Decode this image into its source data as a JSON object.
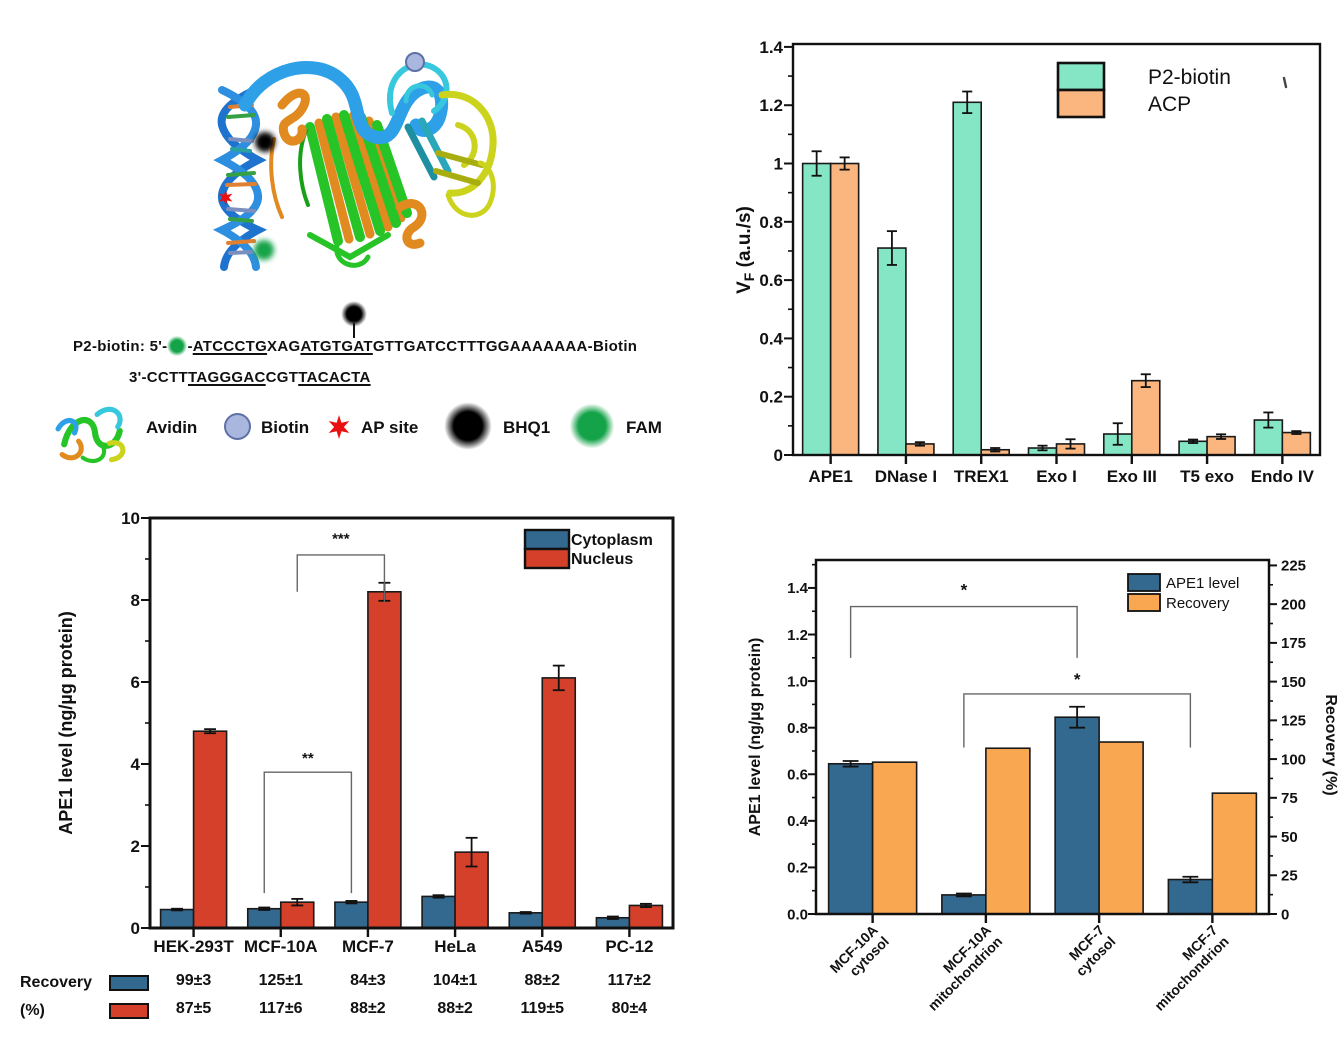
{
  "panel_a": {
    "sequence": {
      "line1_prefix": "P2-biotin: 5'-",
      "line1_dash": "-",
      "line1_seg_u1": "ATCCCTG",
      "line1_mid": "XAG",
      "line1_seg_u2": "ATGTGAT",
      "line1_tail": "GTTGATCCTTTGGAAAAAAA-Biotin",
      "line2_prefix": "3'-CCTT",
      "line2_seg_u1": "TAGGGAC",
      "line2_mid": "CGT",
      "line2_seg_u2": "TACACTA"
    },
    "legend": {
      "avidin": "Avidin",
      "biotin": "Biotin",
      "ap_site": "AP site",
      "bhq1": "BHQ1",
      "fam": "FAM"
    },
    "colors": {
      "fam": "#15a349",
      "bhq1": "#000000",
      "biotin": "#a9b6dd",
      "ap_site": "#e81010"
    }
  },
  "chart_data": [
    {
      "id": "chart-enzymes",
      "type": "bar",
      "title": "",
      "ylabel_parts": [
        [
          "V",
          false
        ],
        [
          "F",
          true
        ],
        [
          " (a.u./s)",
          false
        ]
      ],
      "categories": [
        "APE1",
        "DNase I",
        "TREX1",
        "Exo I",
        "Exo III",
        "T5 exo",
        "Endo IV"
      ],
      "series": [
        {
          "name": "P2-biotin",
          "color": "#85e6c5",
          "values": [
            1.0,
            0.71,
            1.21,
            0.024,
            0.072,
            0.047,
            0.12
          ],
          "errors": [
            0.042,
            0.058,
            0.037,
            0.008,
            0.037,
            0.006,
            0.026
          ]
        },
        {
          "name": "ACP",
          "color": "#fbb57e",
          "values": [
            1.0,
            0.038,
            0.018,
            0.038,
            0.255,
            0.063,
            0.077
          ],
          "errors": [
            0.021,
            0.006,
            0.006,
            0.016,
            0.022,
            0.008,
            0.005
          ]
        }
      ],
      "ylim": [
        0,
        1.41
      ],
      "yticks": [
        0,
        0.2,
        0.4,
        0.6,
        0.8,
        1.0,
        1.2,
        1.4
      ],
      "ytick_labels": [
        "0",
        "0.2",
        "0.4",
        "0.6",
        "0.8",
        "1",
        "1.2",
        "1.4"
      ],
      "minor_step": 0.1,
      "grid": false,
      "legend_position": "top-right-inside"
    },
    {
      "id": "chart-cells",
      "type": "bar",
      "title": "",
      "ylabel_parts": [
        [
          "APE1 level (ng/µg protein)",
          false
        ]
      ],
      "categories": [
        "HEK-293T",
        "MCF-10A",
        "MCF-7",
        "HeLa",
        "A549",
        "PC-12"
      ],
      "series": [
        {
          "name": "Cytoplasm",
          "color": "#33688f",
          "values": [
            0.45,
            0.47,
            0.63,
            0.77,
            0.37,
            0.25
          ],
          "errors": [
            0.02,
            0.03,
            0.03,
            0.03,
            0.02,
            0.03
          ]
        },
        {
          "name": "Nucleus",
          "color": "#d4402a",
          "values": [
            4.8,
            0.63,
            8.2,
            1.85,
            6.1,
            0.55
          ],
          "errors": [
            0.05,
            0.08,
            0.22,
            0.35,
            0.3,
            0.04
          ]
        }
      ],
      "ylim": [
        0,
        10
      ],
      "yticks": [
        0,
        2,
        4,
        6,
        8,
        10
      ],
      "ytick_labels": [
        "0",
        "2",
        "4",
        "6",
        "8",
        "10"
      ],
      "minor_step": 1,
      "grid": false,
      "legend_position": "top-right-inside",
      "brackets": [
        {
          "from": [
            1,
            0
          ],
          "to": [
            2,
            0
          ],
          "y": 3.8,
          "drop_left": 2.95,
          "drop_right": 2.95,
          "label": "**",
          "label_y": 4.15
        },
        {
          "from": [
            1,
            1
          ],
          "to": [
            2,
            1
          ],
          "y": 9.1,
          "drop_left": 0.9,
          "drop_right": 1.15,
          "label": "***",
          "label_y": 9.5
        }
      ]
    },
    {
      "id": "chart-organelle",
      "type": "bar",
      "title": "",
      "ylabel_parts": [
        [
          "APE1 level (ng/µg protein)",
          false
        ]
      ],
      "categories": [
        [
          "MCF-10A",
          "cytosol"
        ],
        [
          "MCF-10A",
          "mitochondrion"
        ],
        [
          "MCF-7",
          "cytosol"
        ],
        [
          "MCF-7",
          "mitochondrion"
        ]
      ],
      "series": [
        {
          "name": "APE1 level",
          "color": "#33688f",
          "axis": "left",
          "values": [
            0.645,
            0.082,
            0.845,
            0.148
          ],
          "errors": [
            0.012,
            0.006,
            0.045,
            0.012
          ]
        },
        {
          "name": "Recovery",
          "color": "#f9a851",
          "axis": "right",
          "values": [
            98,
            107,
            111,
            78
          ],
          "errors": null
        }
      ],
      "ylim": [
        0,
        1.52
      ],
      "yticks": [
        0,
        0.2,
        0.4,
        0.6,
        0.8,
        1.0,
        1.2,
        1.4
      ],
      "ytick_labels": [
        "0.0",
        "0.2",
        "0.4",
        "0.6",
        "0.8",
        "1.0",
        "1.2",
        "1.4"
      ],
      "minor_step": 0.1,
      "right_axis": {
        "label": "Recovery (%)",
        "lim": [
          0,
          228.5
        ],
        "ticks": [
          0,
          25,
          50,
          75,
          100,
          125,
          150,
          175,
          200,
          225
        ],
        "tick_labels": [
          "0",
          "25",
          "50",
          "75",
          "100",
          "125",
          "150",
          "175",
          "200",
          "225"
        ],
        "minor_step": 12.5
      },
      "grid": false,
      "legend_position": "top-right-inside",
      "brackets": [
        {
          "from": [
            0,
            0
          ],
          "to": [
            2,
            0
          ],
          "y": 1.32,
          "drop_left": 0.22,
          "drop_right": 0.22,
          "label": "*",
          "label_y": 1.39
        },
        {
          "from": [
            1,
            0
          ],
          "to": [
            3,
            0
          ],
          "y": 0.945,
          "drop_left": 0.23,
          "drop_right": 0.23,
          "label": "*",
          "label_y": 1.005
        }
      ]
    }
  ],
  "recovery_table": {
    "label": "Recovery",
    "unit": "(%)",
    "rows": [
      {
        "series": "Cytoplasm",
        "color": "#33688f",
        "values": [
          "99±3",
          "125±1",
          "84±3",
          "104±1",
          "88±2",
          "117±2"
        ]
      },
      {
        "series": "Nucleus",
        "color": "#d4402a",
        "values": [
          "87±5",
          "117±6",
          "88±2",
          "88±2",
          "119±5",
          "80±4"
        ]
      }
    ]
  }
}
